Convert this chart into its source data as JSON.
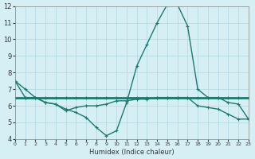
{
  "xlabel": "Humidex (Indice chaleur)",
  "bg_color": "#d6eff5",
  "grid_color": "#b0d8e0",
  "line_color": "#1a7a6e",
  "xlim": [
    0,
    23
  ],
  "ylim": [
    4,
    12
  ],
  "xticks": [
    0,
    1,
    2,
    3,
    4,
    5,
    6,
    7,
    8,
    9,
    10,
    11,
    12,
    13,
    14,
    15,
    16,
    17,
    18,
    19,
    20,
    21,
    22,
    23
  ],
  "yticks": [
    4,
    5,
    6,
    7,
    8,
    9,
    10,
    11,
    12
  ],
  "curve1_x": [
    0,
    1,
    2,
    3,
    4,
    5,
    6,
    7,
    8,
    9,
    10,
    11,
    12,
    13,
    14,
    15,
    16,
    17,
    18,
    19,
    20,
    21,
    22,
    23
  ],
  "curve1_y": [
    7.5,
    7.0,
    6.5,
    6.2,
    6.1,
    5.8,
    5.6,
    5.3,
    4.7,
    4.2,
    4.5,
    6.2,
    8.4,
    9.7,
    11.0,
    12.1,
    12.1,
    10.8,
    7.0,
    6.5,
    6.5,
    6.2,
    6.1,
    5.2
  ],
  "curve2_x": [
    0,
    1,
    2,
    3,
    4,
    5,
    6,
    7,
    8,
    9,
    10,
    11,
    12,
    13,
    14,
    15,
    16,
    17,
    18,
    19,
    20,
    21,
    22,
    23
  ],
  "curve2_y": [
    6.5,
    6.5,
    6.5,
    6.5,
    6.5,
    6.5,
    6.5,
    6.5,
    6.5,
    6.5,
    6.5,
    6.5,
    6.5,
    6.5,
    6.5,
    6.5,
    6.5,
    6.5,
    6.5,
    6.5,
    6.5,
    6.5,
    6.5,
    6.5
  ],
  "curve3_x": [
    0,
    1,
    2,
    3,
    4,
    5,
    6,
    7,
    8,
    9,
    10,
    11,
    12,
    13,
    14,
    15,
    16,
    17,
    18,
    19,
    20,
    21,
    22,
    23
  ],
  "curve3_y": [
    7.5,
    6.5,
    6.5,
    6.2,
    6.1,
    5.7,
    5.9,
    6.0,
    6.0,
    6.1,
    6.3,
    6.3,
    6.4,
    6.4,
    6.5,
    6.5,
    6.5,
    6.5,
    6.0,
    5.9,
    5.8,
    5.5,
    5.2,
    5.2
  ]
}
